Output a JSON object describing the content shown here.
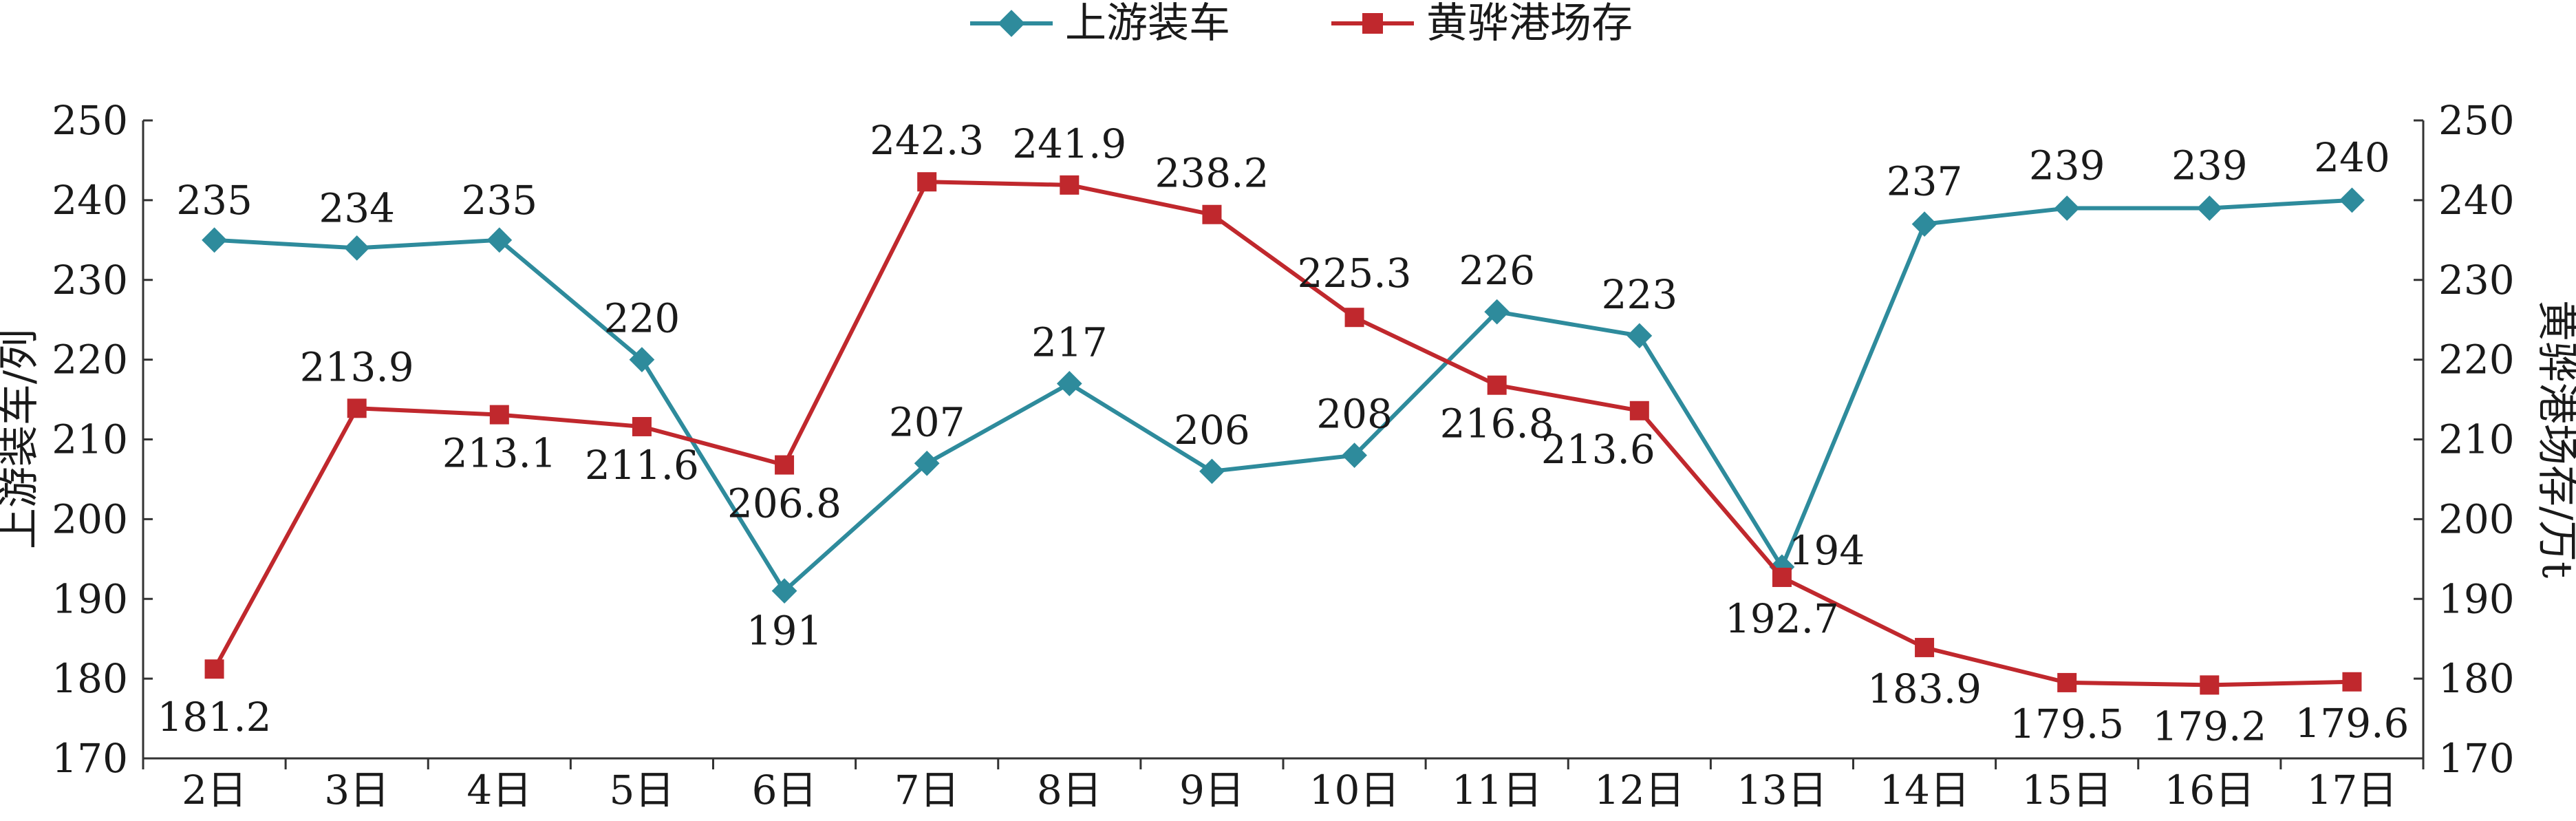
{
  "chart_data": {
    "type": "line",
    "categories": [
      "2日",
      "3日",
      "4日",
      "5日",
      "6日",
      "7日",
      "8日",
      "9日",
      "10日",
      "11日",
      "12日",
      "13日",
      "14日",
      "15日",
      "16日",
      "17日"
    ],
    "series": [
      {
        "name": "上游装车",
        "axis": "left",
        "color": "#2e8b9c",
        "marker": "diamond",
        "values": [
          235,
          234,
          235,
          220,
          191,
          207,
          217,
          206,
          208,
          226,
          223,
          194,
          237,
          239,
          239,
          240
        ],
        "labels": [
          "235",
          "234",
          "235",
          "220",
          "191",
          "207",
          "217",
          "206",
          "208",
          "226",
          "223",
          "194",
          "237",
          "239",
          "239",
          "240"
        ]
      },
      {
        "name": "黄骅港场存",
        "axis": "right",
        "color": "#c0282d",
        "marker": "square",
        "values": [
          181.2,
          213.9,
          213.1,
          211.6,
          206.8,
          242.3,
          241.9,
          238.2,
          225.3,
          216.8,
          213.6,
          192.7,
          183.9,
          179.5,
          179.2,
          179.6
        ],
        "labels": [
          "181.2",
          "213.9",
          "213.1",
          "211.6",
          "206.8",
          "242.3",
          "241.9",
          "238.2",
          "225.3",
          "216.8",
          "213.6",
          "192.7",
          "183.9",
          "179.5",
          "179.2",
          "179.6"
        ]
      }
    ],
    "ylabel_left": "上游装车/列",
    "ylabel_right": "黄骅港场存/万t",
    "ylim_left": [
      170,
      250
    ],
    "ylim_right": [
      170,
      250
    ],
    "yticks": [
      "170",
      "180",
      "190",
      "200",
      "210",
      "220",
      "230",
      "240",
      "250"
    ],
    "grid": false,
    "legend_position": "top-center"
  }
}
